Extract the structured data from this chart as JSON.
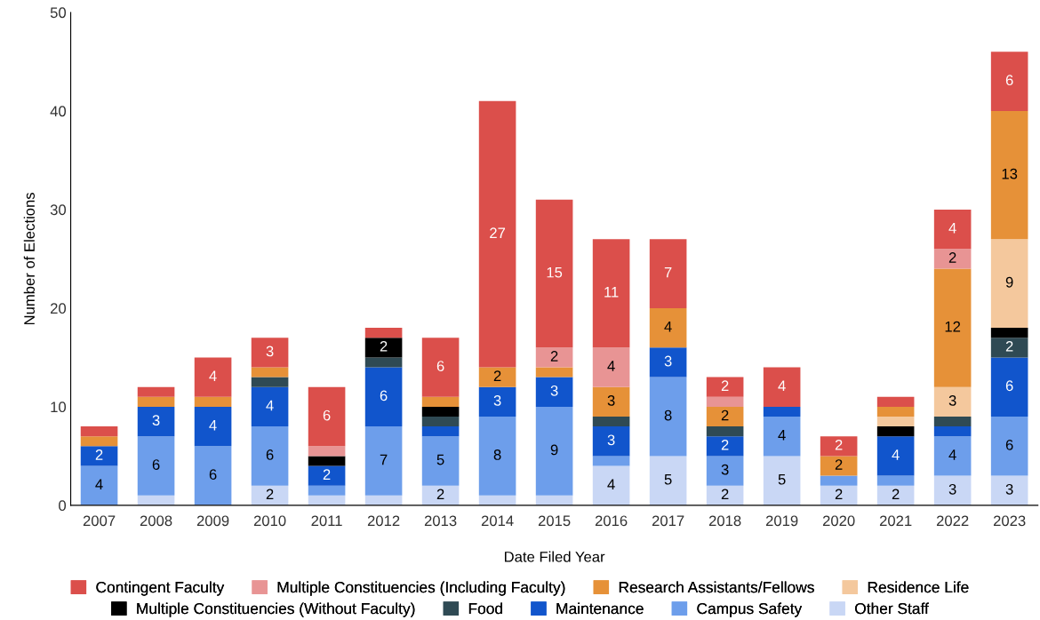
{
  "chart_data": {
    "type": "bar",
    "stacked": true,
    "xlabel": "Date Filed Year",
    "ylabel": "Number of Elections",
    "categories": [
      "2007",
      "2008",
      "2009",
      "2010",
      "2011",
      "2012",
      "2013",
      "2014",
      "2015",
      "2016",
      "2017",
      "2018",
      "2019",
      "2020",
      "2021",
      "2022",
      "2023"
    ],
    "ylim": [
      0,
      50
    ],
    "yticks": [
      0,
      10,
      20,
      30,
      40,
      50
    ],
    "grid": false,
    "legend": "bottom",
    "series": [
      {
        "name": "Other Staff",
        "color": "#c9d7f5",
        "values": [
          null,
          1,
          null,
          2,
          1,
          1,
          2,
          1,
          1,
          4,
          5,
          2,
          5,
          2,
          2,
          3,
          3
        ],
        "value_labels": [
          null,
          null,
          null,
          "2",
          null,
          null,
          "2",
          null,
          null,
          "4",
          "5",
          "2",
          "5",
          "2",
          "2",
          "3",
          "3"
        ]
      },
      {
        "name": "Campus Safety",
        "color": "#6d9eeb",
        "values": [
          4,
          6,
          6,
          6,
          1,
          7,
          5,
          8,
          9,
          1,
          8,
          3,
          4,
          1,
          1,
          4,
          6
        ],
        "value_labels": [
          "4",
          "6",
          "6",
          "6",
          null,
          "7",
          "5",
          "8",
          "9",
          null,
          "8",
          "3",
          "4",
          null,
          null,
          "4",
          "6"
        ]
      },
      {
        "name": "Maintenance",
        "color": "#1155cc",
        "values": [
          2,
          3,
          4,
          4,
          2,
          6,
          1,
          3,
          3,
          3,
          3,
          2,
          1,
          null,
          4,
          1,
          6
        ],
        "value_labels": [
          "2",
          "3",
          "4",
          "4",
          "2",
          "6",
          null,
          "3",
          "3",
          "3",
          "3",
          "2",
          null,
          null,
          "4",
          null,
          "6"
        ]
      },
      {
        "name": "Food",
        "color": "#2f4a54",
        "values": [
          null,
          null,
          null,
          1,
          null,
          1,
          1,
          null,
          null,
          1,
          null,
          1,
          null,
          null,
          null,
          1,
          2
        ],
        "value_labels": [
          null,
          null,
          null,
          null,
          null,
          null,
          null,
          null,
          null,
          null,
          null,
          null,
          null,
          null,
          null,
          null,
          "2"
        ]
      },
      {
        "name": "Multiple Constituencies (Without Faculty)",
        "color": "#000000",
        "values": [
          null,
          null,
          null,
          null,
          1,
          2,
          1,
          null,
          null,
          null,
          null,
          null,
          null,
          null,
          1,
          null,
          1
        ],
        "value_labels": [
          null,
          null,
          null,
          null,
          null,
          "2",
          null,
          null,
          null,
          null,
          null,
          null,
          null,
          null,
          null,
          null,
          null
        ]
      },
      {
        "name": "Residence Life",
        "color": "#f4c89d",
        "values": [
          null,
          null,
          null,
          null,
          null,
          null,
          null,
          null,
          null,
          null,
          null,
          null,
          null,
          null,
          1,
          3,
          9
        ],
        "value_labels": [
          null,
          null,
          null,
          null,
          null,
          null,
          null,
          null,
          null,
          null,
          null,
          null,
          null,
          null,
          null,
          "3",
          "9"
        ]
      },
      {
        "name": "Research Assistants/Fellows",
        "color": "#e69138",
        "values": [
          1,
          1,
          1,
          1,
          null,
          null,
          1,
          2,
          1,
          3,
          4,
          2,
          null,
          2,
          1,
          12,
          13
        ],
        "value_labels": [
          null,
          null,
          null,
          null,
          null,
          null,
          null,
          "2",
          null,
          "3",
          "4",
          "2",
          null,
          "2",
          null,
          "12",
          "13"
        ]
      },
      {
        "name": "Multiple Constituencies (Including Faculty)",
        "color": "#e89494",
        "values": [
          null,
          null,
          null,
          null,
          1,
          null,
          null,
          null,
          2,
          4,
          null,
          1,
          null,
          null,
          null,
          2,
          null
        ],
        "value_labels": [
          null,
          null,
          null,
          null,
          null,
          null,
          null,
          null,
          "2",
          "4",
          null,
          null,
          null,
          null,
          null,
          "2",
          null
        ]
      },
      {
        "name": "Contingent Faculty",
        "color": "#db4f4b",
        "values": [
          1,
          1,
          4,
          3,
          6,
          1,
          6,
          27,
          15,
          11,
          7,
          2,
          4,
          2,
          1,
          4,
          6
        ],
        "value_labels": [
          null,
          null,
          "4",
          "3",
          "6",
          null,
          "6",
          "27",
          "15",
          "11",
          "7",
          "2",
          "4",
          "2",
          null,
          "4",
          "6"
        ]
      }
    ]
  }
}
